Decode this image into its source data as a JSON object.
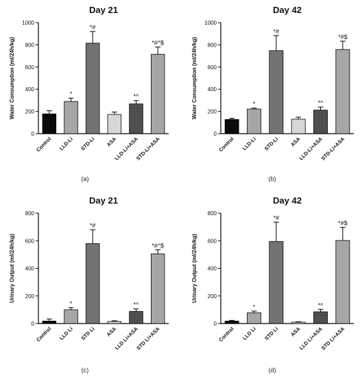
{
  "figure": {
    "panels": [
      {
        "label": "(a)"
      },
      {
        "label": "(b)"
      },
      {
        "label": "(c)"
      },
      {
        "label": "(d)"
      }
    ]
  },
  "chart_data": [
    {
      "type": "bar",
      "title": "Day 21",
      "ylabel": "Water Consumption (ml/24h/kg)",
      "categories": [
        "Control",
        "LLD-Li",
        "STD-Li",
        "ASA",
        "LLD-Li+ASA",
        "STD-Li+ASA"
      ],
      "values": [
        178,
        290,
        815,
        173,
        268,
        715
      ],
      "errors": [
        28,
        30,
        105,
        22,
        30,
        65
      ],
      "annotations": [
        "",
        "*",
        "*#",
        "",
        "*^",
        "*#^$"
      ],
      "bar_colors": [
        "#0a0a0a",
        "#a6a6a6",
        "#737373",
        "#d7d7d7",
        "#4f4f4f",
        "#a6a6a6"
      ],
      "ylim": [
        0,
        1000
      ],
      "yticks": [
        0,
        200,
        400,
        600,
        800,
        1000
      ],
      "grid": false
    },
    {
      "type": "bar",
      "title": "Day 42",
      "ylabel": "Water Consumption (ml/24h/kg)",
      "categories": [
        "Control",
        "LLD-Li",
        "STD-Li",
        "ASA",
        "LLD-Li+ASA",
        "STD-Li+ASA"
      ],
      "values": [
        128,
        222,
        748,
        130,
        212,
        758
      ],
      "errors": [
        10,
        8,
        135,
        18,
        28,
        75
      ],
      "annotations": [
        "",
        "*",
        "*#",
        "",
        "*^",
        "*#$"
      ],
      "bar_colors": [
        "#0a0a0a",
        "#a6a6a6",
        "#737373",
        "#d7d7d7",
        "#4f4f4f",
        "#a6a6a6"
      ],
      "ylim": [
        0,
        1000
      ],
      "yticks": [
        0,
        200,
        400,
        600,
        800,
        1000
      ],
      "grid": false
    },
    {
      "type": "bar",
      "title": "Day 21",
      "ylabel": "Urinary Output (ml/24h/kg)",
      "categories": [
        "Control",
        "LLD Li",
        "STD Li",
        "ASA",
        "LLD Li+ASA",
        "STD Li+ASA"
      ],
      "values": [
        18,
        100,
        580,
        15,
        88,
        505
      ],
      "errors": [
        15,
        15,
        100,
        5,
        18,
        30
      ],
      "annotations": [
        "",
        "*",
        "*#",
        "",
        "*^",
        "*#^$"
      ],
      "bar_colors": [
        "#0a0a0a",
        "#a6a6a6",
        "#737373",
        "#d7d7d7",
        "#4f4f4f",
        "#a6a6a6"
      ],
      "ylim": [
        0,
        800
      ],
      "yticks": [
        0,
        200,
        400,
        600,
        800
      ],
      "grid": false
    },
    {
      "type": "bar",
      "title": "Day 42",
      "ylabel": "Urinary Output (ml/24h/kg)",
      "categories": [
        "Control",
        "LLD Li",
        "STD Li",
        "ASA",
        "LLD Li+ASA",
        "STD Li+ASA"
      ],
      "values": [
        18,
        78,
        595,
        10,
        85,
        602
      ],
      "errors": [
        5,
        12,
        140,
        3,
        18,
        95
      ],
      "annotations": [
        "",
        "*",
        "*#",
        "",
        "*^",
        "*#$"
      ],
      "bar_colors": [
        "#0a0a0a",
        "#a6a6a6",
        "#737373",
        "#d7d7d7",
        "#4f4f4f",
        "#a6a6a6"
      ],
      "ylim": [
        0,
        800
      ],
      "yticks": [
        0,
        200,
        400,
        600,
        800
      ],
      "grid": false
    }
  ]
}
